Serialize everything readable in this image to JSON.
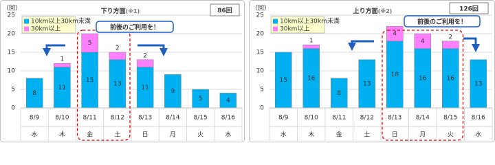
{
  "chart_data": [
    {
      "type": "bar",
      "stacked": true,
      "title": "下り方面",
      "title_note": "(※1)",
      "total_label": "86回",
      "y_label": "（回）",
      "callout": "前後のご利用を！",
      "categories": [
        "8/9",
        "8/10",
        "8/11",
        "8/12",
        "8/13",
        "8/14",
        "8/15",
        "8/16"
      ],
      "weekdays": [
        "水",
        "木",
        "金",
        "土",
        "日",
        "月",
        "火",
        "水"
      ],
      "series": [
        {
          "name": "10km以上30km未満",
          "color": "#00b0f0",
          "values": [
            8,
            11,
            15,
            13,
            11,
            9,
            5,
            4
          ]
        },
        {
          "name": "30km以上",
          "color": "#ff80ff",
          "values": [
            0,
            1,
            5,
            2,
            2,
            0,
            0,
            0
          ]
        }
      ],
      "ylim": [
        0,
        25
      ],
      "yticks": [
        0,
        5,
        10,
        15,
        20,
        25
      ],
      "grid": true
    },
    {
      "type": "bar",
      "stacked": true,
      "title": "上り方面",
      "title_note": "(※2)",
      "total_label": "126回",
      "y_label": "（回）",
      "callout": "前後のご利用を！",
      "categories": [
        "8/9",
        "8/10",
        "8/11",
        "8/12",
        "8/13",
        "8/14",
        "8/15",
        "8/16"
      ],
      "weekdays": [
        "水",
        "木",
        "金",
        "土",
        "日",
        "月",
        "火",
        "水"
      ],
      "series": [
        {
          "name": "10km以上30km未満",
          "color": "#00b0f0",
          "values": [
            15,
            16,
            8,
            13,
            18,
            16,
            16,
            13
          ]
        },
        {
          "name": "30km以上",
          "color": "#ff80ff",
          "values": [
            0,
            1,
            0,
            0,
            4,
            4,
            2,
            0
          ]
        }
      ],
      "ylim": [
        0,
        25
      ],
      "yticks": [
        0,
        5,
        10,
        15,
        20,
        25
      ],
      "grid": true
    }
  ]
}
